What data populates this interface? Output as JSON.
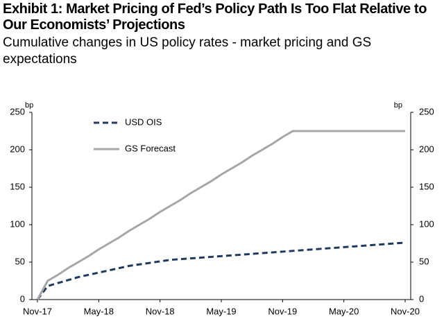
{
  "chart_data": {
    "type": "line",
    "title": "Exhibit 1: Market Pricing of Fed’s Policy Path Is Too Flat Relative to Our Economists’ Projections",
    "subtitle": "Cumulative changes in US policy rates - market pricing and GS expectations",
    "y_unit": "bp",
    "y2_unit": "bp",
    "categories": [
      "Nov-17",
      null,
      null,
      null,
      null,
      null,
      "May-18",
      null,
      null,
      null,
      null,
      null,
      "Nov-18",
      null,
      null,
      null,
      null,
      null,
      "May-19",
      null,
      null,
      null,
      null,
      null,
      "Nov-19",
      null,
      null,
      null,
      null,
      null,
      "May-20",
      null,
      null,
      null,
      null,
      null,
      "Nov-20"
    ],
    "series": [
      {
        "name": "USD OIS",
        "color": "#1f3a5f",
        "dash": true,
        "values": [
          0,
          18,
          22,
          26,
          30,
          33,
          36,
          39,
          42,
          45,
          47,
          49,
          51,
          53,
          54,
          55,
          56,
          57,
          58,
          59,
          60,
          61,
          62,
          63,
          64,
          65,
          66,
          67,
          68,
          69,
          70,
          71,
          72,
          73,
          74,
          75,
          76
        ]
      },
      {
        "name": "GS Forecast",
        "color": "#a6a6a6",
        "dash": false,
        "values": [
          0,
          25,
          33,
          42,
          50,
          58,
          67,
          75,
          83,
          92,
          100,
          108,
          117,
          125,
          133,
          142,
          150,
          158,
          167,
          175,
          183,
          192,
          200,
          208,
          217,
          225,
          225,
          225,
          225,
          225,
          225,
          225,
          225,
          225,
          225,
          225,
          225
        ]
      }
    ],
    "ylim": [
      0,
      250
    ],
    "yticks": [
      0,
      50,
      100,
      150,
      200,
      250
    ],
    "y2lim": [
      0,
      250
    ],
    "y2ticks": [
      0,
      50,
      100,
      150,
      200,
      250
    ],
    "grid": false
  }
}
